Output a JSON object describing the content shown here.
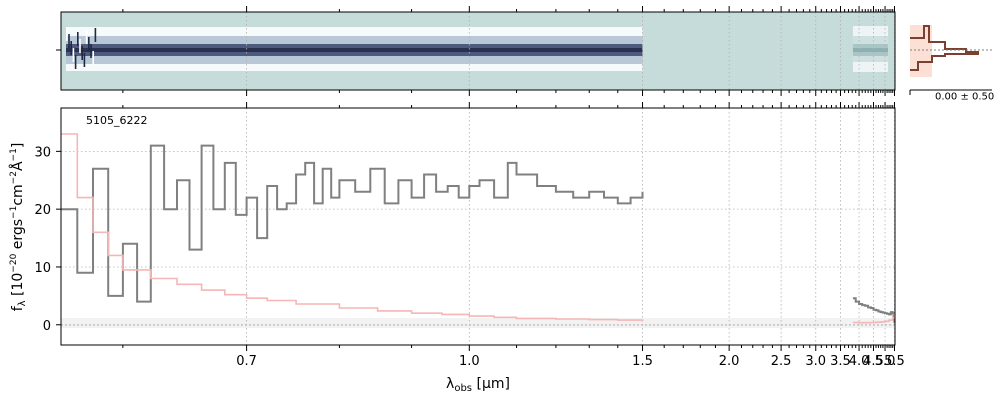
{
  "chart_data": [
    {
      "type": "heatmap",
      "description_role": "2D spectrum strip",
      "segments": [
        {
          "x_range": [
            0.55,
            1.5
          ],
          "style": "dark-blue trace"
        },
        {
          "x_range": [
            3.82,
            5.5
          ],
          "style": "teal trace"
        }
      ],
      "background_color": "#c5dcdb"
    },
    {
      "type": "line",
      "label_id": "5105_6222",
      "xlabel": "λ_obs [μm]",
      "ylabel": "f_λ [10^-20 ergs^-1 cm^-2 Å^-1]",
      "ylim": [
        -3.5,
        37.5
      ],
      "xlim": [
        0.56,
        5.53
      ],
      "x_scale": "reciprocal",
      "yticks": [
        0,
        10,
        20,
        30
      ],
      "ytick_labels": [
        "0",
        "10",
        "20",
        "30"
      ],
      "xticks": [
        0.7,
        1.0,
        1.5,
        2.0,
        2.5,
        3.0,
        3.5,
        4.0,
        4.5,
        5.0,
        5.5
      ],
      "xtick_labels": [
        "0.7",
        "1.0",
        "1.5",
        "2.0",
        "2.5",
        "3.0",
        "3.5",
        "4.0",
        "4.5",
        "5.0",
        "5.5"
      ],
      "grid": true,
      "series": [
        {
          "role": "flux",
          "color": "#808080",
          "x": [
            0.56,
            0.57,
            0.58,
            0.59,
            0.6,
            0.61,
            0.62,
            0.63,
            0.64,
            0.65,
            0.66,
            0.67,
            0.68,
            0.69,
            0.7,
            0.71,
            0.72,
            0.73,
            0.74,
            0.75,
            0.76,
            0.77,
            0.78,
            0.79,
            0.8,
            0.82,
            0.84,
            0.86,
            0.88,
            0.9,
            0.92,
            0.94,
            0.96,
            0.98,
            1.0,
            1.02,
            1.05,
            1.08,
            1.1,
            1.15,
            1.2,
            1.25,
            1.3,
            1.35,
            1.4,
            1.45,
            1.5
          ],
          "y": [
            20,
            9,
            27,
            5,
            14,
            4,
            31,
            20,
            25,
            13,
            31,
            20,
            28,
            19,
            22,
            15,
            24,
            20,
            21,
            26,
            28,
            21,
            27,
            22,
            25,
            23,
            27,
            21,
            25,
            22,
            26,
            23,
            24,
            22,
            24,
            25,
            22,
            28,
            26,
            24,
            23,
            22,
            23,
            22,
            21,
            22,
            23
          ]
        },
        {
          "role": "flux",
          "color": "#808080",
          "x": [
            3.82,
            3.9,
            4.0,
            4.1,
            4.2,
            4.3,
            4.4,
            4.5,
            4.6,
            4.7,
            4.8,
            4.9,
            5.0,
            5.1,
            5.2,
            5.3,
            5.4,
            5.45,
            5.5
          ],
          "y": [
            4.6,
            4.0,
            3.6,
            3.4,
            3.3,
            3.0,
            2.9,
            2.6,
            2.5,
            2.3,
            2.2,
            2.1,
            2.0,
            1.9,
            1.8,
            2.2,
            2.0,
            1.5,
            0.3
          ]
        },
        {
          "role": "error",
          "color": "#f4b6b6",
          "x": [
            0.56,
            0.57,
            0.58,
            0.59,
            0.6,
            0.62,
            0.64,
            0.66,
            0.68,
            0.7,
            0.72,
            0.75,
            0.8,
            0.85,
            0.9,
            0.95,
            1.0,
            1.05,
            1.1,
            1.2,
            1.3,
            1.4,
            1.5
          ],
          "y": [
            33,
            22,
            16,
            12,
            9.5,
            8,
            7,
            6,
            5.2,
            4.6,
            4.2,
            3.6,
            2.9,
            2.4,
            2.0,
            1.8,
            1.5,
            1.3,
            1.1,
            1.0,
            0.9,
            0.8,
            0.7
          ]
        },
        {
          "role": "error",
          "color": "#f4b6b6",
          "x": [
            3.82,
            4.0,
            4.2,
            4.4,
            4.6,
            4.8,
            5.0,
            5.2,
            5.4,
            5.5
          ],
          "y": [
            0.4,
            0.35,
            0.35,
            0.4,
            0.45,
            0.5,
            0.6,
            0.8,
            1.2,
            2.0
          ]
        }
      ]
    },
    {
      "type": "bar",
      "description_role": "spatial profile",
      "xtick_label": "0.00 ± 0.50"
    }
  ]
}
